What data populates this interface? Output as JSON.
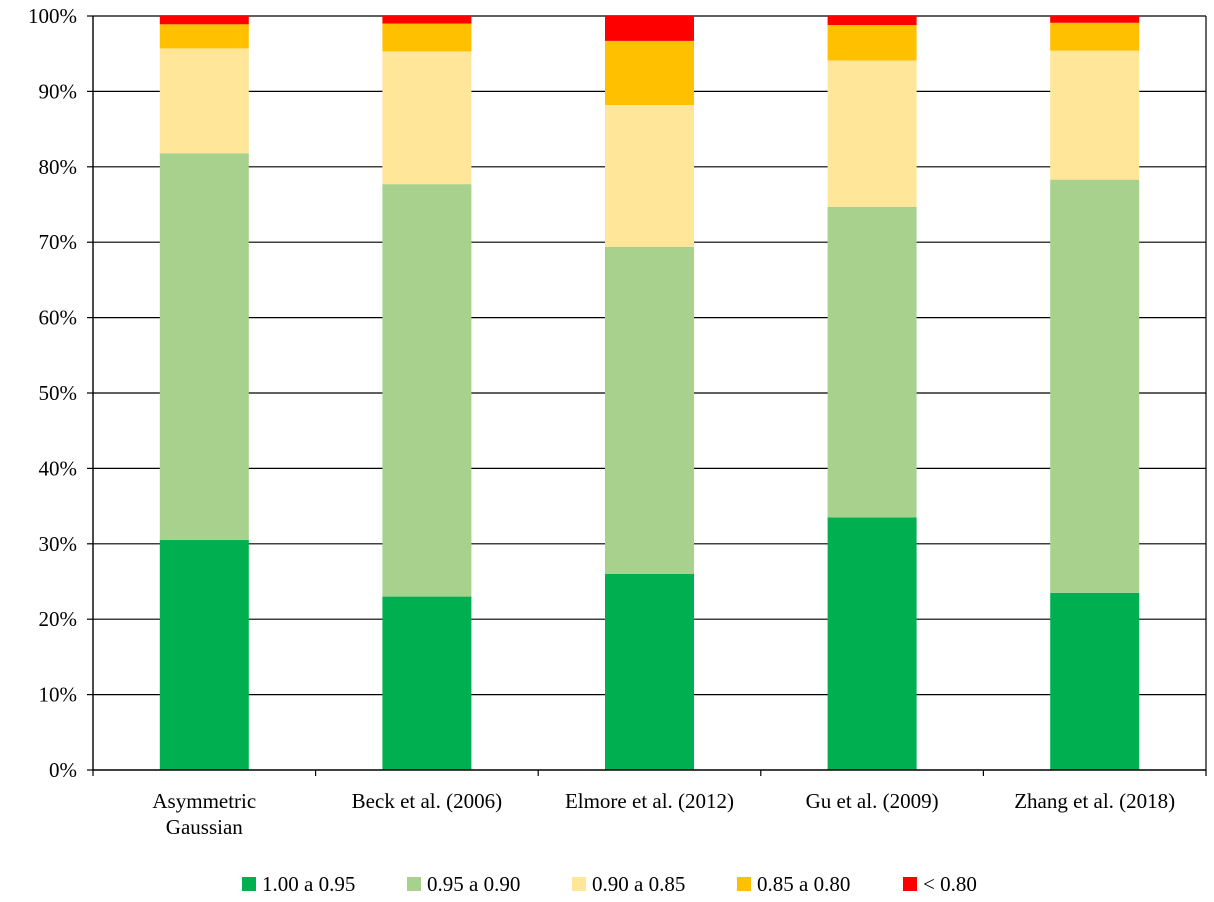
{
  "chart_data": {
    "type": "bar",
    "stacked": true,
    "percent": true,
    "title": "",
    "xlabel": "",
    "ylabel": "",
    "ylim": [
      0,
      100
    ],
    "y_ticks": [
      "0%",
      "10%",
      "20%",
      "30%",
      "40%",
      "50%",
      "60%",
      "70%",
      "80%",
      "90%",
      "100%"
    ],
    "grid": true,
    "legend_position": "bottom",
    "categories": [
      [
        "Asymmetric",
        "Gaussian"
      ],
      [
        "Beck et al. (2006)"
      ],
      [
        "Elmore et al. (2012)"
      ],
      [
        "Gu et al. (2009)"
      ],
      [
        "Zhang et al. (2018)"
      ]
    ],
    "series": [
      {
        "name": "1.00 a 0.95",
        "color": "#00b050",
        "values": [
          30.5,
          23.0,
          26.0,
          33.5,
          23.5
        ]
      },
      {
        "name": "0.95 a 0.90",
        "color": "#a9d18e",
        "values": [
          51.3,
          54.7,
          43.4,
          41.2,
          54.8
        ]
      },
      {
        "name": "0.90 a 0.85",
        "color": "#ffe699",
        "values": [
          13.9,
          17.6,
          18.8,
          19.4,
          17.1
        ]
      },
      {
        "name": "0.85 a 0.80",
        "color": "#ffc000",
        "values": [
          3.2,
          3.7,
          8.5,
          4.7,
          3.7
        ]
      },
      {
        "name": "< 0.80",
        "color": "#ff0000",
        "values": [
          1.1,
          1.0,
          3.3,
          1.2,
          0.9
        ]
      }
    ]
  }
}
